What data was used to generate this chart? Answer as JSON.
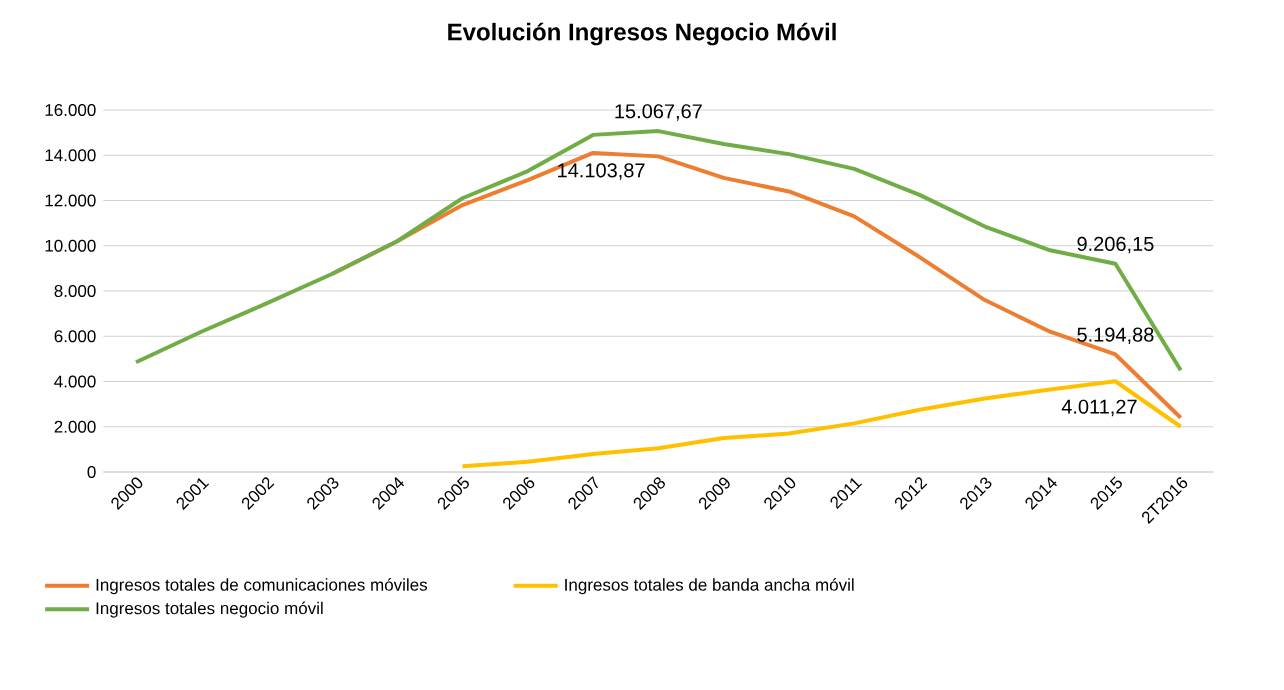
{
  "chart_data": {
    "type": "line",
    "title": "Evolución Ingresos Negocio Móvil",
    "categories": [
      "2000",
      "2001",
      "2002",
      "2003",
      "2004",
      "2005",
      "2006",
      "2007",
      "2008",
      "2009",
      "2010",
      "2011",
      "2012",
      "2013",
      "2014",
      "2015",
      "2T2016"
    ],
    "series": [
      {
        "name": "Ingresos totales de comunicaciones móviles",
        "color": "#ed7d31",
        "values": [
          null,
          null,
          null,
          8750,
          10200,
          11800,
          12900,
          14103.87,
          13950,
          13000,
          12400,
          11300,
          9500,
          7600,
          6200,
          5194.88,
          2400
        ],
        "value_labels": [
          null,
          null,
          null,
          null,
          null,
          null,
          null,
          "14.103,87",
          null,
          null,
          null,
          null,
          null,
          null,
          null,
          "5.194,88",
          null
        ]
      },
      {
        "name": "Ingresos totales de banda ancha móvil",
        "color": "#ffc000",
        "values": [
          null,
          null,
          null,
          null,
          null,
          250,
          450,
          800,
          1050,
          1500,
          1700,
          2150,
          2750,
          3250,
          3650,
          4011.27,
          2000
        ],
        "value_labels": [
          null,
          null,
          null,
          null,
          null,
          null,
          null,
          null,
          null,
          null,
          null,
          null,
          null,
          null,
          null,
          "4.011,27",
          null
        ]
      },
      {
        "name": "Ingresos totales negocio móvil",
        "color": "#70ad47",
        "values": [
          4850,
          6200,
          7450,
          8750,
          10200,
          12100,
          13300,
          14900,
          15067.67,
          14500,
          14050,
          13400,
          12250,
          10850,
          9800,
          9206.15,
          4500
        ],
        "value_labels": [
          null,
          null,
          null,
          null,
          null,
          null,
          null,
          null,
          "15.067,67",
          null,
          null,
          null,
          null,
          null,
          null,
          "9.206,15",
          null
        ]
      }
    ],
    "ylim": [
      0,
      16000
    ],
    "yticks": [
      0,
      {
        "value": 2000,
        "label": "2.000"
      },
      {
        "value": 4000,
        "label": "4.000"
      },
      {
        "value": 6000,
        "label": "6.000"
      },
      {
        "value": 8000,
        "label": "8.000"
      },
      {
        "value": 10000,
        "label": "10.000"
      },
      {
        "value": 12000,
        "label": "12.000"
      },
      {
        "value": 14000,
        "label": "14.000"
      },
      {
        "value": 16000,
        "label": "16.000"
      }
    ],
    "grid": "y",
    "legend": "bottom",
    "marker": "none",
    "line_style": "solid"
  }
}
